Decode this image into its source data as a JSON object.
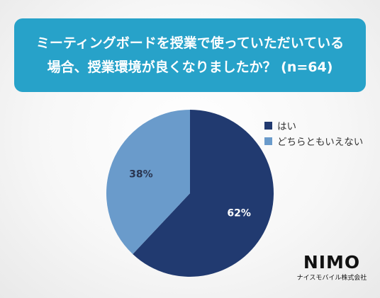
{
  "title": {
    "line1": "ミーティングボードを授業で使っていただいている",
    "line2": "場合、授業環境が良くなりましたか？ (n=64)"
  },
  "chart_data": {
    "type": "pie",
    "title": "ミーティングボードを授業で使っていただいている場合、授業環境が良くなりましたか？ (n=64)",
    "slices": [
      {
        "label": "はい",
        "value": 62,
        "display": "62%",
        "color": "#213a70"
      },
      {
        "label": "どちらともいえない",
        "value": 38,
        "display": "38%",
        "color": "#6a9bcb"
      }
    ],
    "legend_position": "right"
  },
  "brand": {
    "logo": "NIMO",
    "subtitle": "ナイスモバイル株式会社"
  }
}
